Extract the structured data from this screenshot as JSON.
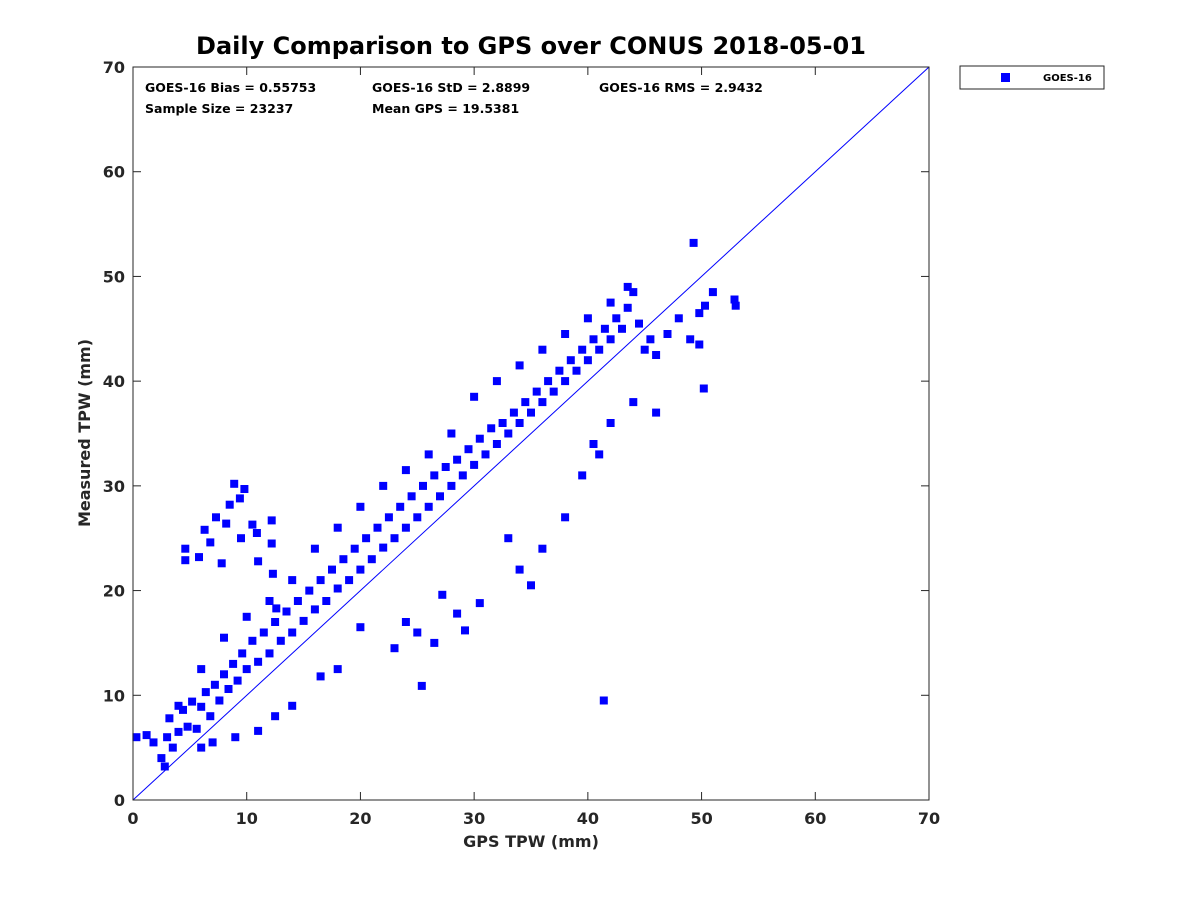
{
  "chart_data": {
    "type": "scatter",
    "title": "Daily Comparison to GPS over CONUS 2018-05-01",
    "xlabel": "GPS TPW (mm)",
    "ylabel": "Measured TPW (mm)",
    "xlim": [
      0,
      70
    ],
    "ylim": [
      0,
      70
    ],
    "xticks": [
      0,
      10,
      20,
      30,
      40,
      50,
      60,
      70
    ],
    "yticks": [
      0,
      10,
      20,
      30,
      40,
      50,
      60,
      70
    ],
    "grid": false,
    "legend_position": "outside-top-right",
    "reference_line": {
      "type": "one-to-one",
      "from": [
        0,
        0
      ],
      "to": [
        70,
        70
      ],
      "color": "#0000ff"
    },
    "stats": [
      "GOES-16 Bias = 0.55753",
      "GOES-16 StD = 2.8899",
      "GOES-16 RMS = 2.9432",
      "Sample Size = 23237",
      "Mean GPS = 19.5381"
    ],
    "series": [
      {
        "name": "GOES-16",
        "color": "#0000ff",
        "marker": "square",
        "points": [
          [
            0.3,
            6.0
          ],
          [
            1.2,
            6.2
          ],
          [
            1.8,
            5.5
          ],
          [
            2.5,
            4.0
          ],
          [
            2.8,
            3.2
          ],
          [
            3.2,
            7.8
          ],
          [
            3.5,
            5.0
          ],
          [
            4.0,
            6.5
          ],
          [
            4.4,
            8.6
          ],
          [
            4.8,
            7.0
          ],
          [
            5.2,
            9.4
          ],
          [
            5.6,
            6.8
          ],
          [
            6.0,
            8.9
          ],
          [
            6.4,
            10.3
          ],
          [
            6.8,
            8.0
          ],
          [
            7.2,
            11.0
          ],
          [
            7.6,
            9.5
          ],
          [
            8.0,
            12.0
          ],
          [
            8.4,
            10.6
          ],
          [
            8.8,
            13.0
          ],
          [
            9.2,
            11.4
          ],
          [
            9.6,
            14.0
          ],
          [
            10.0,
            12.5
          ],
          [
            10.5,
            15.2
          ],
          [
            11.0,
            13.2
          ],
          [
            11.5,
            16.0
          ],
          [
            12.0,
            14.0
          ],
          [
            12.5,
            17.0
          ],
          [
            13.0,
            15.2
          ],
          [
            13.5,
            18.0
          ],
          [
            14.0,
            16.0
          ],
          [
            14.5,
            19.0
          ],
          [
            15.0,
            17.1
          ],
          [
            15.5,
            20.0
          ],
          [
            16.0,
            18.2
          ],
          [
            16.5,
            21.0
          ],
          [
            17.0,
            19.0
          ],
          [
            17.5,
            22.0
          ],
          [
            18.0,
            20.2
          ],
          [
            18.5,
            23.0
          ],
          [
            19.0,
            21.0
          ],
          [
            19.5,
            24.0
          ],
          [
            20.0,
            22.0
          ],
          [
            20.5,
            25.0
          ],
          [
            21.0,
            23.0
          ],
          [
            21.5,
            26.0
          ],
          [
            22.0,
            24.1
          ],
          [
            22.5,
            27.0
          ],
          [
            23.0,
            25.0
          ],
          [
            23.5,
            28.0
          ],
          [
            24.0,
            26.0
          ],
          [
            24.5,
            29.0
          ],
          [
            25.0,
            27.0
          ],
          [
            25.5,
            30.0
          ],
          [
            26.0,
            28.0
          ],
          [
            26.5,
            31.0
          ],
          [
            27.0,
            29.0
          ],
          [
            27.5,
            31.8
          ],
          [
            28.0,
            30.0
          ],
          [
            28.5,
            32.5
          ],
          [
            29.0,
            31.0
          ],
          [
            29.5,
            33.5
          ],
          [
            30.0,
            32.0
          ],
          [
            30.5,
            34.5
          ],
          [
            31.0,
            33.0
          ],
          [
            31.5,
            35.5
          ],
          [
            32.0,
            34.0
          ],
          [
            32.5,
            36.0
          ],
          [
            33.0,
            35.0
          ],
          [
            33.5,
            37.0
          ],
          [
            34.0,
            36.0
          ],
          [
            34.5,
            38.0
          ],
          [
            35.0,
            37.0
          ],
          [
            35.5,
            39.0
          ],
          [
            36.0,
            38.0
          ],
          [
            36.5,
            40.0
          ],
          [
            37.0,
            39.0
          ],
          [
            37.5,
            41.0
          ],
          [
            38.0,
            40.0
          ],
          [
            38.5,
            42.0
          ],
          [
            39.0,
            41.0
          ],
          [
            39.5,
            43.0
          ],
          [
            40.0,
            42.0
          ],
          [
            40.5,
            44.0
          ],
          [
            41.0,
            43.0
          ],
          [
            41.5,
            45.0
          ],
          [
            42.0,
            44.0
          ],
          [
            42.5,
            46.0
          ],
          [
            43.0,
            45.0
          ],
          [
            43.5,
            47.0
          ],
          [
            44.0,
            48.5
          ],
          [
            44.5,
            45.5
          ],
          [
            45.0,
            43.0
          ],
          [
            45.5,
            44.0
          ],
          [
            46.0,
            42.5
          ],
          [
            47.0,
            44.5
          ],
          [
            48.0,
            46.0
          ],
          [
            49.0,
            44.0
          ],
          [
            49.3,
            53.2
          ],
          [
            49.8,
            46.5
          ],
          [
            50.3,
            47.2
          ],
          [
            51.0,
            48.5
          ],
          [
            53.0,
            47.2
          ],
          [
            52.9,
            47.8
          ],
          [
            50.2,
            39.3
          ],
          [
            49.8,
            43.5
          ],
          [
            4.6,
            24.0
          ],
          [
            4.6,
            22.9
          ],
          [
            5.8,
            23.2
          ],
          [
            6.3,
            25.8
          ],
          [
            6.8,
            24.6
          ],
          [
            7.3,
            27.0
          ],
          [
            8.2,
            26.4
          ],
          [
            8.5,
            28.2
          ],
          [
            8.9,
            30.2
          ],
          [
            9.4,
            28.8
          ],
          [
            9.8,
            29.7
          ],
          [
            10.5,
            26.3
          ],
          [
            10.9,
            25.5
          ],
          [
            12.2,
            26.7
          ],
          [
            12.2,
            24.5
          ],
          [
            11.0,
            22.8
          ],
          [
            12.3,
            21.6
          ],
          [
            12.6,
            18.3
          ],
          [
            7.8,
            22.6
          ],
          [
            9.5,
            25.0
          ],
          [
            25.4,
            10.9
          ],
          [
            41.4,
            9.5
          ],
          [
            35.0,
            20.5
          ],
          [
            34.0,
            22.0
          ],
          [
            33.0,
            25.0
          ],
          [
            30.5,
            18.8
          ],
          [
            28.5,
            17.8
          ],
          [
            27.2,
            19.6
          ],
          [
            26.5,
            15.0
          ],
          [
            25.0,
            16.0
          ],
          [
            24.0,
            17.0
          ],
          [
            23.0,
            14.5
          ],
          [
            29.2,
            16.2
          ],
          [
            36.0,
            24.0
          ],
          [
            38.0,
            27.0
          ],
          [
            39.5,
            31.0
          ],
          [
            40.5,
            34.0
          ],
          [
            42.0,
            36.0
          ],
          [
            44.0,
            38.0
          ],
          [
            46.0,
            37.0
          ],
          [
            41.0,
            33.0
          ],
          [
            20.0,
            16.5
          ],
          [
            18.0,
            12.5
          ],
          [
            16.5,
            11.8
          ],
          [
            14.0,
            9.0
          ],
          [
            12.5,
            8.0
          ],
          [
            11.0,
            6.6
          ],
          [
            9.0,
            6.0
          ],
          [
            7.0,
            5.5
          ],
          [
            6.0,
            5.0
          ],
          [
            3.0,
            6.0
          ],
          [
            4.0,
            9.0
          ],
          [
            6.0,
            12.5
          ],
          [
            8.0,
            15.5
          ],
          [
            10.0,
            17.5
          ],
          [
            12.0,
            19.0
          ],
          [
            14.0,
            21.0
          ],
          [
            16.0,
            24.0
          ],
          [
            18.0,
            26.0
          ],
          [
            20.0,
            28.0
          ],
          [
            22.0,
            30.0
          ],
          [
            24.0,
            31.5
          ],
          [
            26.0,
            33.0
          ],
          [
            28.0,
            35.0
          ],
          [
            30.0,
            38.5
          ],
          [
            32.0,
            40.0
          ],
          [
            34.0,
            41.5
          ],
          [
            36.0,
            43.0
          ],
          [
            38.0,
            44.5
          ],
          [
            40.0,
            46.0
          ],
          [
            42.0,
            47.5
          ],
          [
            43.5,
            49.0
          ]
        ]
      }
    ]
  }
}
